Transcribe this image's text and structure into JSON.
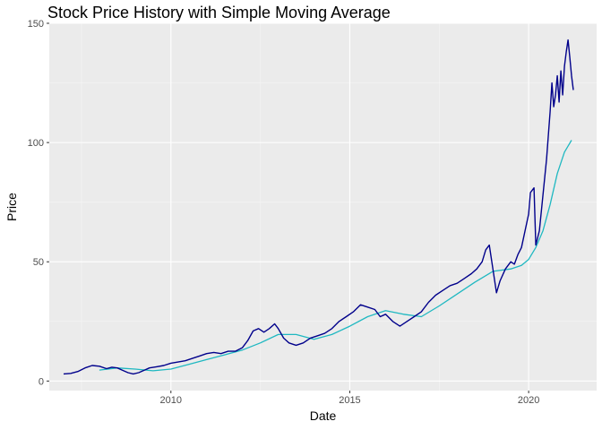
{
  "chart_data": {
    "type": "line",
    "title": "Stock Price History with Simple Moving Average",
    "xlabel": "Date",
    "ylabel": "Price",
    "xlim": [
      2006.6,
      2021.9
    ],
    "ylim": [
      -4,
      150
    ],
    "x_ticks": [
      2010,
      2015,
      2020
    ],
    "x_tick_labels": [
      "2010",
      "2015",
      "2020"
    ],
    "y_ticks": [
      0,
      50,
      100,
      150
    ],
    "y_tick_labels": [
      "0",
      "50",
      "100",
      "150"
    ],
    "grid": true,
    "legend": "none",
    "colors": {
      "panel": "#ebebeb",
      "grid_major": "#ffffff",
      "grid_minor": "#f5f5f5"
    },
    "series": [
      {
        "color": "#00008b",
        "x": [
          2007.0,
          2007.2,
          2007.4,
          2007.6,
          2007.8,
          2008.0,
          2008.2,
          2008.35,
          2008.5,
          2008.65,
          2008.8,
          2008.95,
          2009.1,
          2009.25,
          2009.4,
          2009.6,
          2009.8,
          2010.0,
          2010.2,
          2010.4,
          2010.6,
          2010.8,
          2011.0,
          2011.2,
          2011.4,
          2011.6,
          2011.8,
          2012.0,
          2012.15,
          2012.3,
          2012.45,
          2012.6,
          2012.75,
          2012.9,
          2013.0,
          2013.15,
          2013.3,
          2013.5,
          2013.7,
          2013.9,
          2014.1,
          2014.3,
          2014.5,
          2014.7,
          2014.9,
          2015.1,
          2015.3,
          2015.5,
          2015.7,
          2015.85,
          2016.0,
          2016.2,
          2016.4,
          2016.6,
          2016.8,
          2017.0,
          2017.2,
          2017.4,
          2017.6,
          2017.8,
          2018.0,
          2018.2,
          2018.4,
          2018.55,
          2018.7,
          2018.8,
          2018.9,
          2019.0,
          2019.1,
          2019.2,
          2019.35,
          2019.5,
          2019.6,
          2019.7,
          2019.8,
          2019.9,
          2020.0,
          2020.05,
          2020.15,
          2020.2,
          2020.3,
          2020.4,
          2020.5,
          2020.6,
          2020.65,
          2020.7,
          2020.75,
          2020.8,
          2020.85,
          2020.9,
          2020.95,
          2021.0,
          2021.05,
          2021.1,
          2021.15,
          2021.2,
          2021.25
        ],
        "values": [
          3,
          3.2,
          4,
          5.5,
          6.5,
          6.2,
          5.2,
          5.8,
          5.5,
          4.5,
          3.5,
          3,
          3.5,
          4.5,
          5.5,
          6,
          6.5,
          7.5,
          8,
          8.5,
          9.5,
          10.5,
          11.5,
          12,
          11.5,
          12.5,
          12.5,
          14,
          17,
          21,
          22,
          20.5,
          22,
          24,
          22,
          18,
          16,
          15,
          16,
          18,
          19,
          20,
          22,
          25,
          27,
          29,
          32,
          31,
          30,
          27,
          28,
          25,
          23,
          25,
          27,
          29,
          33,
          36,
          38,
          40,
          41,
          43,
          45,
          47,
          50,
          55,
          57,
          47,
          37,
          42,
          47,
          50,
          49,
          53,
          56,
          63,
          70,
          79,
          81,
          57,
          63,
          78,
          93,
          113,
          125,
          115,
          120,
          128,
          117,
          130,
          120,
          132,
          138,
          143,
          136,
          128,
          122
        ]
      },
      {
        "color": "#1fb8c1",
        "x": [
          2008.0,
          2008.5,
          2009.0,
          2009.5,
          2010.0,
          2010.5,
          2011.0,
          2011.5,
          2012.0,
          2012.5,
          2013.0,
          2013.5,
          2014.0,
          2014.5,
          2015.0,
          2015.5,
          2016.0,
          2016.5,
          2017.0,
          2017.5,
          2018.0,
          2018.5,
          2019.0,
          2019.5,
          2019.8,
          2020.0,
          2020.2,
          2020.4,
          2020.6,
          2020.8,
          2021.0,
          2021.2
        ],
        "values": [
          4.6,
          5.5,
          5,
          4.3,
          5,
          7,
          9,
          11,
          13,
          16,
          19.5,
          19.5,
          17.5,
          19.5,
          23,
          27,
          29.5,
          28,
          27,
          31.5,
          36.5,
          41.5,
          46,
          47,
          48.5,
          51,
          56,
          63,
          74,
          87,
          96,
          101
        ]
      }
    ]
  }
}
